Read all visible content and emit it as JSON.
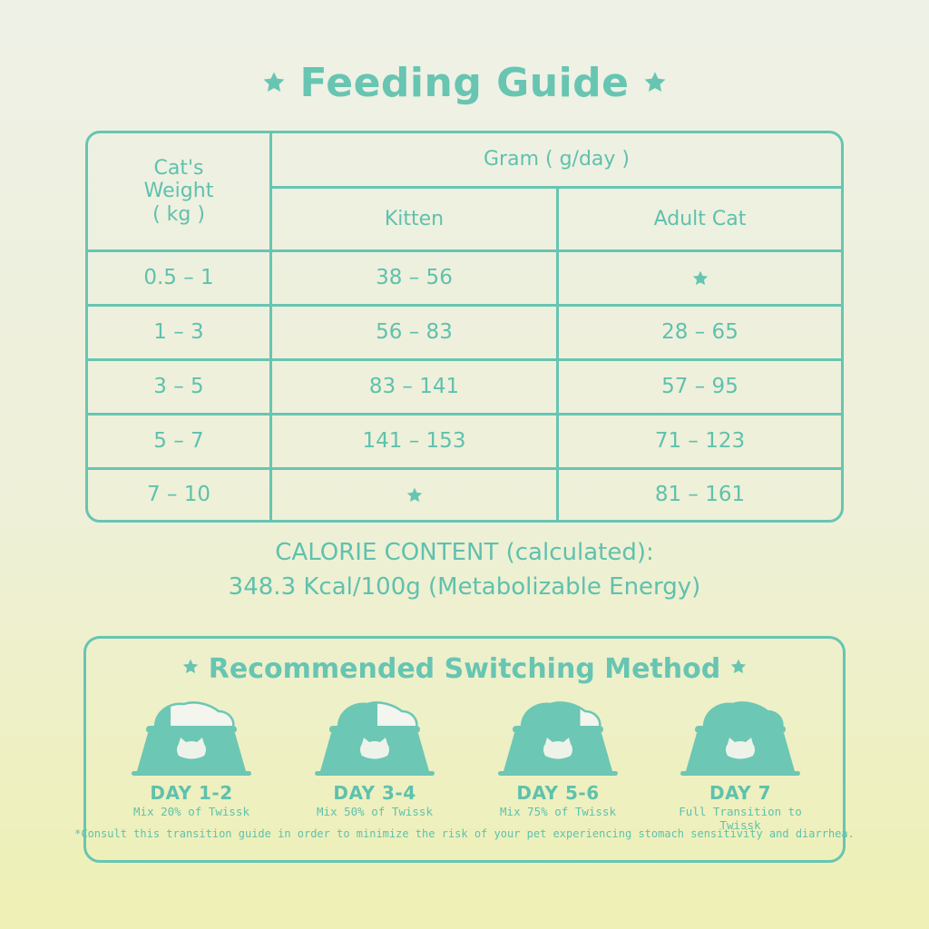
{
  "title": "Feeding Guide",
  "table": {
    "weight_header_line1": "Cat's",
    "weight_header_line2": "Weight",
    "weight_header_line3": "( kg )",
    "gram_header": "Gram ( g/day )",
    "kitten_header": "Kitten",
    "adult_header": "Adult Cat",
    "rows": [
      {
        "weight": "0.5 – 1",
        "kitten": "38 – 56",
        "adult": "★"
      },
      {
        "weight": "1 – 3",
        "kitten": "56 – 83",
        "adult": "28 – 65"
      },
      {
        "weight": "3 – 5",
        "kitten": "83 – 141",
        "adult": "57 – 95"
      },
      {
        "weight": "5 – 7",
        "kitten": "141 – 153",
        "adult": "71 – 123"
      },
      {
        "weight": "7 – 10",
        "kitten": "★",
        "adult": "81 – 161"
      }
    ]
  },
  "calorie": {
    "line1": "CALORIE CONTENT (calculated):",
    "line2": "348.3 Kcal/100g (Metabolizable Energy)"
  },
  "switching": {
    "title": "Recommended Switching Method",
    "steps": [
      {
        "day": "DAY 1-2",
        "mix": "Mix 20% of Twissk",
        "new_fraction": 0.2
      },
      {
        "day": "DAY 3-4",
        "mix": "Mix 50% of Twissk",
        "new_fraction": 0.5
      },
      {
        "day": "DAY 5-6",
        "mix": "Mix 75% of Twissk",
        "new_fraction": 0.75
      },
      {
        "day": "DAY 7",
        "mix": "Full Transition to Twissk",
        "new_fraction": 1.0
      }
    ],
    "footnote": "*Consult this transition guide in order to minimize the risk of your pet experiencing stomach sensitivity and diarrhea."
  },
  "colors": {
    "accent": "#67c5b2",
    "text": "#5fc1ad",
    "bowl": "#6cc7b4",
    "cat_face": "#eef3ea"
  },
  "icons": [
    "star-icon",
    "bowl-icon",
    "cat-face-icon"
  ]
}
